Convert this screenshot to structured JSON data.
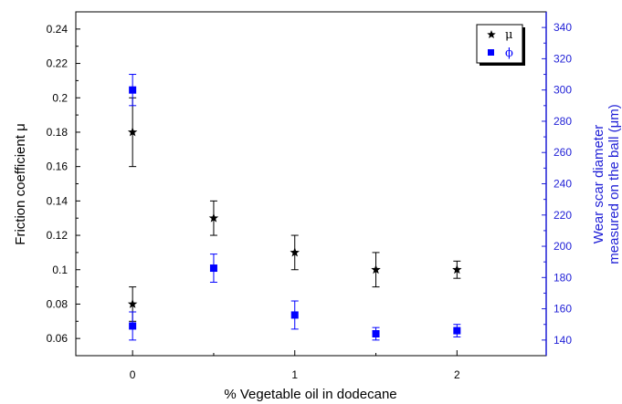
{
  "chart_data": {
    "type": "scatter",
    "title": "",
    "xlabel": "% Vegetable oil in dodecane",
    "ylabel_left": "Friction coefficient μ",
    "ylabel_right": [
      "Wear scar diameter",
      "measured on the ball (μm)"
    ],
    "xlim": [
      -0.35,
      2.55
    ],
    "ylim_left": [
      0.05,
      0.25
    ],
    "ylim_right": [
      130,
      350
    ],
    "x_ticks": [
      0,
      1,
      2
    ],
    "y_ticks_left": [
      "0.06",
      "0.08",
      "0.1",
      "0.12",
      "0.14",
      "0.16",
      "0.18",
      "0.2",
      "0.22",
      "0.24"
    ],
    "y_ticks_right": [
      "140",
      "160",
      "180",
      "200",
      "220",
      "240",
      "260",
      "280",
      "300",
      "320",
      "340"
    ],
    "colors": {
      "mu": "#000000",
      "phi": "#0000ff",
      "right_axis": "#1f1fd6"
    },
    "legend_position": "top-right",
    "series": [
      {
        "name": "μ",
        "axis": "left",
        "marker": "star",
        "points": [
          {
            "x": 0,
            "y": 0.18,
            "err": 0.02
          },
          {
            "x": 0,
            "y": 0.08,
            "err": 0.01
          },
          {
            "x": 0.5,
            "y": 0.13,
            "err": 0.01
          },
          {
            "x": 1,
            "y": 0.11,
            "err": 0.01
          },
          {
            "x": 1.5,
            "y": 0.1,
            "err": 0.01
          },
          {
            "x": 2,
            "y": 0.1,
            "err": 0.005
          }
        ]
      },
      {
        "name": "ϕ",
        "axis": "right",
        "marker": "square",
        "points": [
          {
            "x": 0,
            "y": 300,
            "err": 10
          },
          {
            "x": 0,
            "y": 149,
            "err": 9
          },
          {
            "x": 0.5,
            "y": 186,
            "err": 9
          },
          {
            "x": 1,
            "y": 156,
            "err": 9
          },
          {
            "x": 1.5,
            "y": 144,
            "err": 4
          },
          {
            "x": 2,
            "y": 146,
            "err": 4
          }
        ]
      }
    ]
  }
}
